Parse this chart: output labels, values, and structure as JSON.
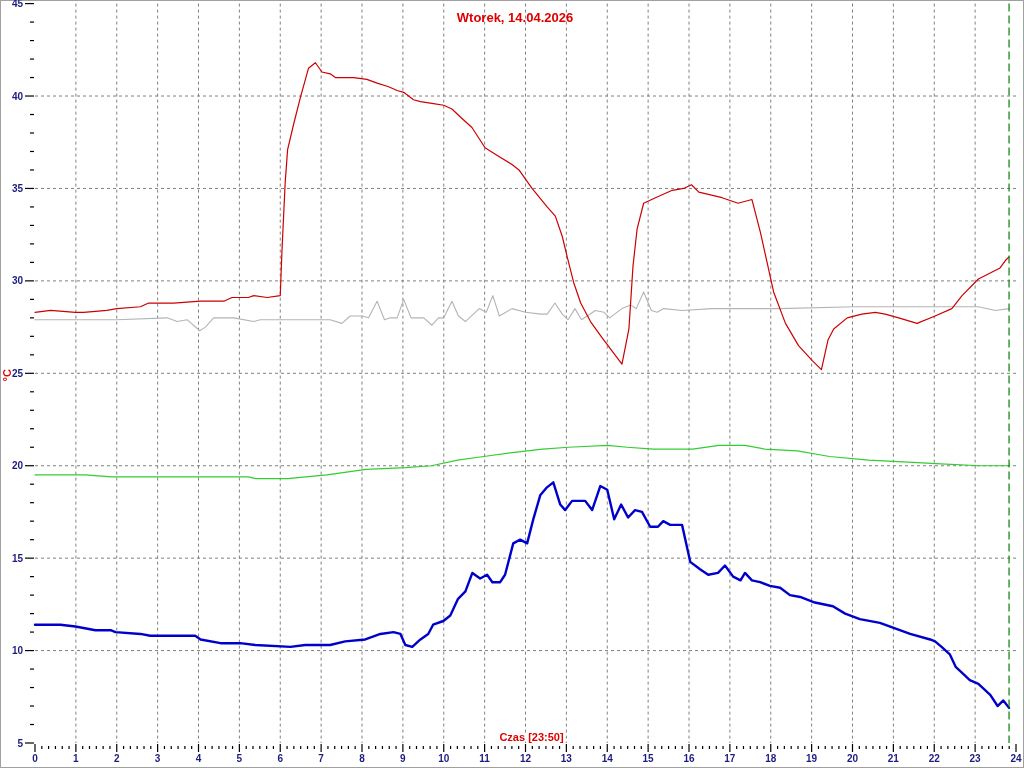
{
  "chart_data": {
    "type": "line",
    "title": "Wtorek, 14.04.2026",
    "xlabel": "Czas [23:50]",
    "ylabel": "°C",
    "xlim": [
      0,
      24
    ],
    "ylim": [
      5,
      45
    ],
    "xticks": [
      0,
      {
        "value": 0.167,
        "label": null
      },
      {
        "value": 0.333,
        "label": null
      },
      {
        "value": 0.5,
        "label": null
      },
      {
        "value": 0.667,
        "label": null
      },
      {
        "value": 0.833,
        "label": null
      },
      1,
      {
        "value": 1.167,
        "label": null
      },
      {
        "value": 1.333,
        "label": null
      },
      {
        "value": 1.5,
        "label": null
      },
      {
        "value": 1.667,
        "label": null
      },
      {
        "value": 1.833,
        "label": null
      },
      2,
      {
        "value": 2.167,
        "label": null
      },
      {
        "value": 2.333,
        "label": null
      },
      {
        "value": 2.5,
        "label": null
      },
      {
        "value": 2.667,
        "label": null
      },
      {
        "value": 2.833,
        "label": null
      },
      3,
      {
        "value": 3.167,
        "label": null
      },
      {
        "value": 3.333,
        "label": null
      },
      {
        "value": 3.5,
        "label": null
      },
      {
        "value": 3.667,
        "label": null
      },
      {
        "value": 3.833,
        "label": null
      },
      4,
      {
        "value": 4.167,
        "label": null
      },
      {
        "value": 4.333,
        "label": null
      },
      {
        "value": 4.5,
        "label": null
      },
      {
        "value": 4.667,
        "label": null
      },
      {
        "value": 4.833,
        "label": null
      },
      5,
      {
        "value": 5.167,
        "label": null
      },
      {
        "value": 5.333,
        "label": null
      },
      {
        "value": 5.5,
        "label": null
      },
      {
        "value": 5.667,
        "label": null
      },
      {
        "value": 5.833,
        "label": null
      },
      6,
      {
        "value": 6.167,
        "label": null
      },
      {
        "value": 6.333,
        "label": null
      },
      {
        "value": 6.5,
        "label": null
      },
      {
        "value": 6.667,
        "label": null
      },
      {
        "value": 6.833,
        "label": null
      },
      7,
      {
        "value": 7.167,
        "label": null
      },
      {
        "value": 7.333,
        "label": null
      },
      {
        "value": 7.5,
        "label": null
      },
      {
        "value": 7.667,
        "label": null
      },
      {
        "value": 7.833,
        "label": null
      },
      8,
      {
        "value": 8.167,
        "label": null
      },
      {
        "value": 8.333,
        "label": null
      },
      {
        "value": 8.5,
        "label": null
      },
      {
        "value": 8.667,
        "label": null
      },
      {
        "value": 8.833,
        "label": null
      },
      9,
      {
        "value": 9.167,
        "label": null
      },
      {
        "value": 9.333,
        "label": null
      },
      {
        "value": 9.5,
        "label": null
      },
      {
        "value": 9.667,
        "label": null
      },
      {
        "value": 9.833,
        "label": null
      },
      10,
      {
        "value": 10.167,
        "label": null
      },
      {
        "value": 10.333,
        "label": null
      },
      {
        "value": 10.5,
        "label": null
      },
      {
        "value": 10.667,
        "label": null
      },
      {
        "value": 10.833,
        "label": null
      },
      11,
      {
        "value": 11.167,
        "label": null
      },
      {
        "value": 11.333,
        "label": null
      },
      {
        "value": 11.5,
        "label": null
      },
      {
        "value": 11.667,
        "label": null
      },
      {
        "value": 11.833,
        "label": null
      },
      12,
      {
        "value": 12.167,
        "label": null
      },
      {
        "value": 12.333,
        "label": null
      },
      {
        "value": 12.5,
        "label": null
      },
      {
        "value": 12.667,
        "label": null
      },
      {
        "value": 12.833,
        "label": null
      },
      13,
      {
        "value": 13.167,
        "label": null
      },
      {
        "value": 13.333,
        "label": null
      },
      {
        "value": 13.5,
        "label": null
      },
      {
        "value": 13.667,
        "label": null
      },
      {
        "value": 13.833,
        "label": null
      },
      14,
      {
        "value": 14.167,
        "label": null
      },
      {
        "value": 14.333,
        "label": null
      },
      {
        "value": 14.5,
        "label": null
      },
      {
        "value": 14.667,
        "label": null
      },
      {
        "value": 14.833,
        "label": null
      },
      15,
      {
        "value": 15.167,
        "label": null
      },
      {
        "value": 15.333,
        "label": null
      },
      {
        "value": 15.5,
        "label": null
      },
      {
        "value": 15.667,
        "label": null
      },
      {
        "value": 15.833,
        "label": null
      },
      16,
      {
        "value": 16.167,
        "label": null
      },
      {
        "value": 16.333,
        "label": null
      },
      {
        "value": 16.5,
        "label": null
      },
      {
        "value": 16.667,
        "label": null
      },
      {
        "value": 16.833,
        "label": null
      },
      17,
      {
        "value": 17.167,
        "label": null
      },
      {
        "value": 17.333,
        "label": null
      },
      {
        "value": 17.5,
        "label": null
      },
      {
        "value": 17.667,
        "label": null
      },
      {
        "value": 17.833,
        "label": null
      },
      18,
      {
        "value": 18.167,
        "label": null
      },
      {
        "value": 18.333,
        "label": null
      },
      {
        "value": 18.5,
        "label": null
      },
      {
        "value": 18.667,
        "label": null
      },
      {
        "value": 18.833,
        "label": null
      },
      19,
      {
        "value": 19.167,
        "label": null
      },
      {
        "value": 19.333,
        "label": null
      },
      {
        "value": 19.5,
        "label": null
      },
      {
        "value": 19.667,
        "label": null
      },
      {
        "value": 19.833,
        "label": null
      },
      20,
      {
        "value": 20.167,
        "label": null
      },
      {
        "value": 20.333,
        "label": null
      },
      {
        "value": 20.5,
        "label": null
      },
      {
        "value": 20.667,
        "label": null
      },
      {
        "value": 20.833,
        "label": null
      },
      21,
      {
        "value": 21.167,
        "label": null
      },
      {
        "value": 21.333,
        "label": null
      },
      {
        "value": 21.5,
        "label": null
      },
      {
        "value": 21.667,
        "label": null
      },
      {
        "value": 21.833,
        "label": null
      },
      22,
      {
        "value": 22.167,
        "label": null
      },
      {
        "value": 22.333,
        "label": null
      },
      {
        "value": 22.5,
        "label": null
      },
      {
        "value": 22.667,
        "label": null
      },
      {
        "value": 22.833,
        "label": null
      },
      23,
      {
        "value": 23.167,
        "label": null
      },
      {
        "value": 23.333,
        "label": null
      },
      {
        "value": 23.5,
        "label": null
      },
      {
        "value": 23.667,
        "label": null
      },
      {
        "value": 23.833,
        "label": null
      },
      24
    ],
    "yticks": [
      5,
      {
        "value": 6,
        "label": null
      },
      {
        "value": 7,
        "label": null
      },
      {
        "value": 8,
        "label": null
      },
      {
        "value": 9,
        "label": null
      },
      10,
      {
        "value": 11,
        "label": null
      },
      {
        "value": 12,
        "label": null
      },
      {
        "value": 13,
        "label": null
      },
      {
        "value": 14,
        "label": null
      },
      15,
      {
        "value": 16,
        "label": null
      },
      {
        "value": 17,
        "label": null
      },
      {
        "value": 18,
        "label": null
      },
      {
        "value": 19,
        "label": null
      },
      20,
      {
        "value": 21,
        "label": null
      },
      {
        "value": 22,
        "label": null
      },
      {
        "value": 23,
        "label": null
      },
      {
        "value": 24,
        "label": null
      },
      25,
      {
        "value": 26,
        "label": null
      },
      {
        "value": 27,
        "label": null
      },
      {
        "value": 28,
        "label": null
      },
      {
        "value": 29,
        "label": null
      },
      30,
      {
        "value": 31,
        "label": null
      },
      {
        "value": 32,
        "label": null
      },
      {
        "value": 33,
        "label": null
      },
      {
        "value": 34,
        "label": null
      },
      35,
      {
        "value": 36,
        "label": null
      },
      {
        "value": 37,
        "label": null
      },
      {
        "value": 38,
        "label": null
      },
      {
        "value": 39,
        "label": null
      },
      40,
      {
        "value": 41,
        "label": null
      },
      {
        "value": 42,
        "label": null
      },
      {
        "value": 43,
        "label": null
      },
      {
        "value": 44,
        "label": null
      },
      45
    ],
    "grid": true,
    "ref_lines": [
      {
        "axis": "x",
        "value": 23.83,
        "color": "#008000",
        "line_style": "dashed"
      }
    ],
    "series": [
      {
        "color": "#b4b4b4",
        "x": [
          0,
          0.38,
          2.0,
          3.23,
          3.48,
          3.72,
          4.03,
          4.17,
          4.37,
          4.86,
          5.35,
          5.51,
          6.98,
          7.22,
          7.51,
          7.71,
          8.0,
          8.16,
          8.37,
          8.55,
          8.69,
          8.86,
          9.02,
          9.2,
          9.51,
          9.71,
          9.87,
          10.0,
          10.2,
          10.36,
          10.53,
          10.87,
          11.04,
          11.2,
          11.36,
          11.67,
          12.0,
          12.37,
          12.53,
          12.72,
          12.9,
          13.04,
          13.21,
          13.37,
          13.71,
          13.92,
          14.06,
          14.36,
          14.57,
          14.71,
          14.89,
          15.08,
          15.22,
          15.38,
          15.83,
          16.56,
          18.2,
          20.07,
          22.27,
          23.08,
          23.5,
          23.83
        ],
        "values": [
          27.9,
          27.9,
          27.9,
          28.0,
          27.8,
          27.9,
          27.3,
          27.5,
          28.0,
          28.0,
          27.8,
          27.9,
          27.9,
          27.9,
          27.7,
          28.1,
          28.1,
          28.0,
          28.9,
          27.9,
          28.0,
          28.0,
          29.0,
          28.0,
          28.0,
          27.6,
          28.0,
          28.0,
          28.9,
          28.1,
          27.8,
          28.5,
          28.3,
          29.2,
          28.1,
          28.5,
          28.3,
          28.2,
          28.2,
          28.8,
          28.2,
          27.9,
          28.5,
          27.9,
          28.4,
          28.3,
          28.0,
          28.5,
          28.7,
          28.5,
          29.4,
          28.4,
          28.3,
          28.5,
          28.4,
          28.5,
          28.5,
          28.6,
          28.6,
          28.6,
          28.4,
          28.5
        ]
      },
      {
        "color": "#cc0000",
        "x": [
          0,
          0.38,
          0.99,
          1.19,
          1.76,
          2.0,
          2.58,
          2.78,
          3.39,
          4.05,
          4.62,
          4.82,
          5.02,
          5.22,
          5.35,
          5.68,
          6.0,
          6.04,
          6.12,
          6.18,
          6.33,
          6.49,
          6.69,
          6.86,
          7.02,
          7.22,
          7.35,
          7.8,
          8.12,
          8.37,
          8.65,
          8.86,
          9.02,
          9.26,
          9.43,
          9.71,
          10.0,
          10.2,
          10.44,
          10.69,
          11.01,
          11.3,
          11.67,
          11.84,
          12.16,
          12.53,
          12.73,
          12.9,
          13.02,
          13.18,
          13.35,
          13.59,
          13.88,
          14.12,
          14.36,
          14.53,
          14.63,
          14.73,
          14.89,
          15.18,
          15.59,
          15.87,
          16.06,
          16.24,
          16.81,
          17.2,
          17.54,
          17.75,
          18.07,
          18.36,
          18.68,
          19.01,
          19.24,
          19.4,
          19.54,
          19.87,
          20.23,
          20.56,
          20.8,
          21.13,
          21.58,
          22.02,
          22.43,
          22.68,
          23.08,
          23.61,
          23.74,
          23.83
        ],
        "values": [
          28.3,
          28.4,
          28.3,
          28.3,
          28.4,
          28.5,
          28.6,
          28.8,
          28.8,
          28.9,
          28.9,
          29.1,
          29.1,
          29.1,
          29.2,
          29.1,
          29.2,
          31.5,
          35.3,
          37.1,
          38.5,
          39.9,
          41.5,
          41.8,
          41.3,
          41.2,
          41.0,
          41.0,
          40.9,
          40.7,
          40.5,
          40.3,
          40.2,
          39.8,
          39.7,
          39.6,
          39.5,
          39.3,
          38.8,
          38.3,
          37.2,
          36.8,
          36.3,
          36.0,
          35.0,
          34.0,
          33.5,
          32.4,
          31.3,
          29.9,
          28.8,
          27.8,
          26.9,
          26.2,
          25.5,
          27.4,
          30.8,
          32.8,
          34.2,
          34.5,
          34.9,
          35.0,
          35.2,
          34.8,
          34.5,
          34.2,
          34.4,
          32.6,
          29.4,
          27.7,
          26.5,
          25.7,
          25.2,
          26.8,
          27.4,
          28.0,
          28.2,
          28.3,
          28.2,
          28.0,
          27.7,
          28.1,
          28.5,
          29.2,
          30.1,
          30.7,
          31.1,
          31.3
        ]
      },
      {
        "color": "#33cc33",
        "x": [
          0,
          1.23,
          1.87,
          5.23,
          5.39,
          6.18,
          7.14,
          8.1,
          9.06,
          9.7,
          10.34,
          10.98,
          11.62,
          12.42,
          13.05,
          14.01,
          14.49,
          15.13,
          16.09,
          16.73,
          17.37,
          17.85,
          18.65,
          19.44,
          20.4,
          21.36,
          22.16,
          23.12,
          23.83
        ],
        "values": [
          19.5,
          19.5,
          19.4,
          19.4,
          19.3,
          19.3,
          19.5,
          19.8,
          19.9,
          20.0,
          20.3,
          20.5,
          20.7,
          20.9,
          21.0,
          21.1,
          21.0,
          20.9,
          20.9,
          21.1,
          21.1,
          20.9,
          20.8,
          20.5,
          20.3,
          20.2,
          20.1,
          20.0,
          20.0
        ]
      },
      {
        "color": "#0000cc",
        "x": [
          0,
          0.62,
          0.99,
          1.48,
          1.85,
          1.97,
          2.58,
          2.82,
          3.92,
          4.05,
          4.54,
          5.02,
          5.39,
          6.25,
          6.61,
          7.22,
          7.59,
          8.08,
          8.45,
          8.77,
          8.94,
          9.06,
          9.23,
          9.43,
          9.62,
          9.74,
          9.99,
          10.16,
          10.35,
          10.53,
          10.7,
          10.89,
          11.06,
          11.19,
          11.38,
          11.5,
          11.7,
          11.87,
          12.04,
          12.19,
          12.36,
          12.51,
          12.68,
          12.85,
          12.97,
          13.14,
          13.46,
          13.63,
          13.83,
          14.0,
          14.17,
          14.34,
          14.51,
          14.68,
          14.85,
          15.05,
          15.24,
          15.37,
          15.54,
          15.83,
          16.03,
          16.27,
          16.47,
          16.71,
          16.88,
          17.08,
          17.26,
          17.37,
          17.54,
          17.74,
          17.98,
          18.23,
          18.47,
          18.72,
          19.08,
          19.52,
          19.82,
          20.18,
          20.67,
          21.04,
          21.41,
          21.9,
          22.02,
          22.18,
          22.38,
          22.53,
          22.63,
          22.87,
          23.08,
          23.37,
          23.55,
          23.69,
          23.83
        ],
        "values": [
          11.4,
          11.4,
          11.3,
          11.1,
          11.1,
          11.0,
          10.9,
          10.8,
          10.8,
          10.6,
          10.4,
          10.4,
          10.3,
          10.2,
          10.3,
          10.3,
          10.5,
          10.6,
          10.9,
          11.0,
          10.9,
          10.3,
          10.2,
          10.6,
          10.9,
          11.4,
          11.6,
          11.9,
          12.8,
          13.2,
          14.2,
          13.9,
          14.1,
          13.7,
          13.7,
          14.1,
          15.8,
          16.0,
          15.8,
          17.1,
          18.4,
          18.8,
          19.1,
          17.9,
          17.6,
          18.1,
          18.1,
          17.6,
          18.9,
          18.7,
          17.1,
          17.9,
          17.2,
          17.6,
          17.5,
          16.7,
          16.7,
          17.0,
          16.8,
          16.8,
          14.8,
          14.4,
          14.1,
          14.2,
          14.6,
          14.0,
          13.8,
          14.2,
          13.8,
          13.7,
          13.5,
          13.4,
          13.0,
          12.9,
          12.6,
          12.4,
          12.0,
          11.7,
          11.5,
          11.2,
          10.9,
          10.6,
          10.5,
          10.2,
          9.8,
          9.1,
          8.9,
          8.4,
          8.2,
          7.6,
          7.0,
          7.3,
          6.9
        ]
      }
    ]
  }
}
